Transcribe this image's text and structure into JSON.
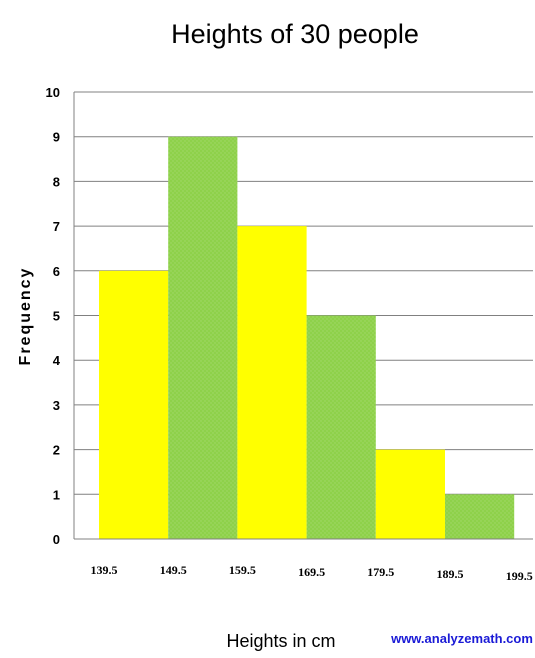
{
  "chart_data": {
    "type": "bar",
    "title": "Heights of 30 people",
    "xlabel": "Heights in cm",
    "ylabel": "Frequency",
    "bin_edges": [
      "139.5",
      "149.5",
      "159.5",
      "169.5",
      "179.5",
      "189.5",
      "199.5"
    ],
    "values": [
      6,
      9,
      7,
      5,
      2,
      1
    ],
    "ylim": [
      0,
      10
    ],
    "yticks": [
      "0",
      "1",
      "2",
      "3",
      "4",
      "5",
      "6",
      "7",
      "8",
      "9",
      "10"
    ],
    "grid": true,
    "legend": "none",
    "bar_colors": [
      "#ffff00",
      "#8ed14a",
      "#ffff00",
      "#8ed14a",
      "#ffff00",
      "#8ed14a"
    ],
    "grid_color": "#808080"
  },
  "footer": {
    "credit": "www.analyzemath.com"
  }
}
